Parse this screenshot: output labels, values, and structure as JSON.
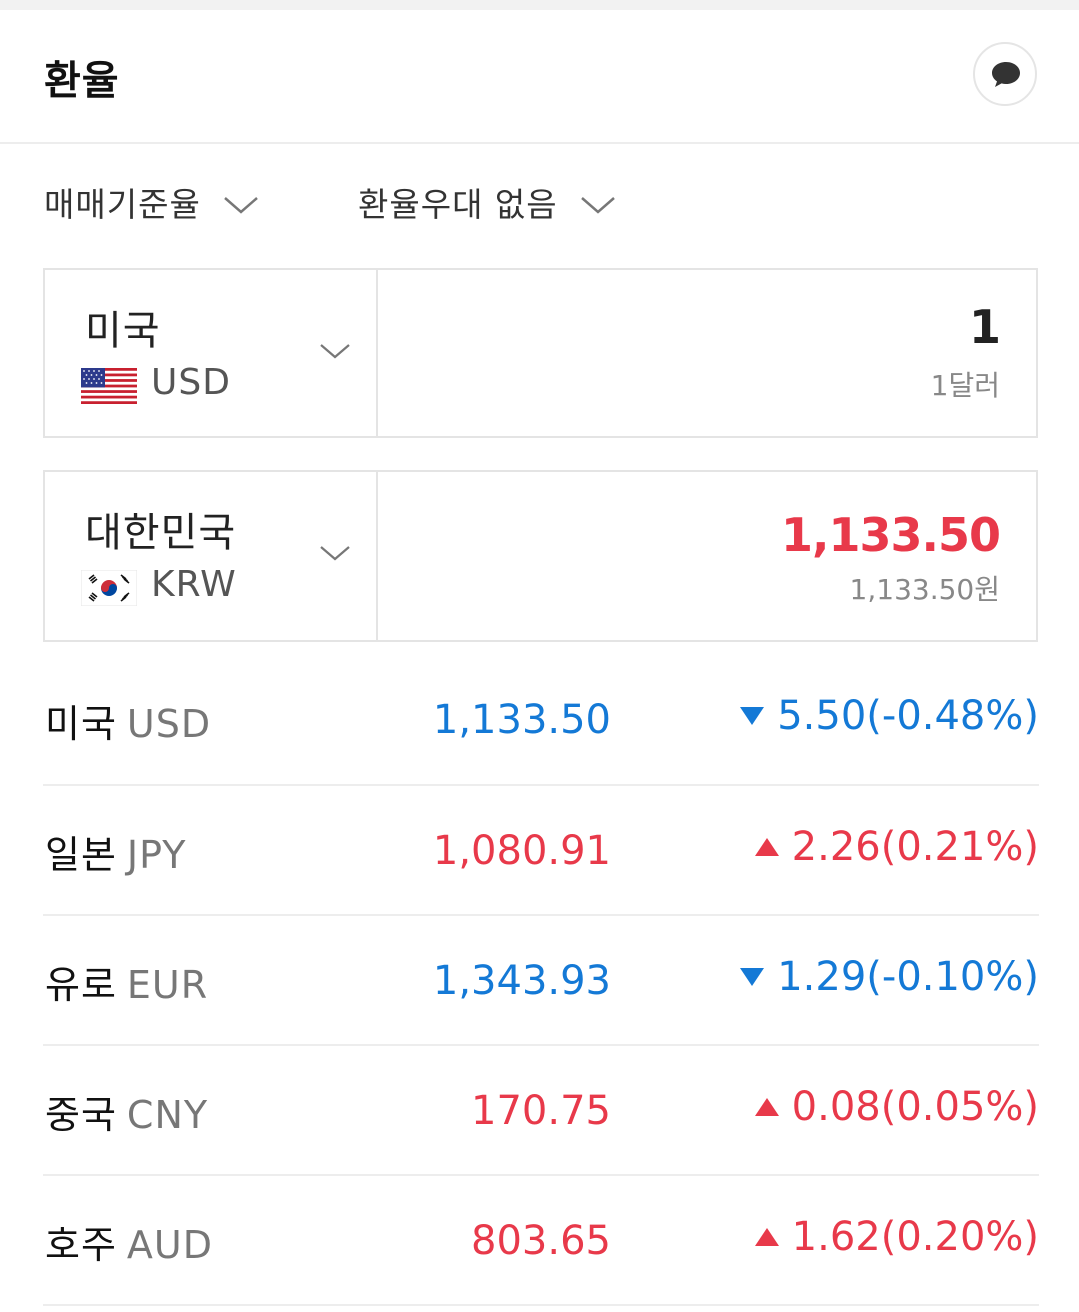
{
  "header": {
    "title": "환율"
  },
  "filters": {
    "basis": "매매기준율",
    "preference": "환율우대 없음"
  },
  "converter": {
    "from": {
      "country": "미국",
      "code": "USD",
      "amount": "1",
      "amount_text": "1달러"
    },
    "to": {
      "country": "대한민국",
      "code": "KRW",
      "amount": "1,133.50",
      "amount_text": "1,133.50원"
    }
  },
  "rates": [
    {
      "country": "미국",
      "code": "USD",
      "value": "1,133.50",
      "change": "5.50(-0.48%)",
      "direction": "down"
    },
    {
      "country": "일본",
      "code": "JPY",
      "value": "1,080.91",
      "change": "2.26(0.21%)",
      "direction": "up"
    },
    {
      "country": "유로",
      "code": "EUR",
      "value": "1,343.93",
      "change": "1.29(-0.10%)",
      "direction": "down"
    },
    {
      "country": "중국",
      "code": "CNY",
      "value": "170.75",
      "change": "0.08(0.05%)",
      "direction": "up"
    },
    {
      "country": "호주",
      "code": "AUD",
      "value": "803.65",
      "change": "1.62(0.20%)",
      "direction": "up"
    }
  ],
  "colors": {
    "up": "#e8394a",
    "down": "#1479d6",
    "border": "#e4e4e4"
  },
  "icons": [
    "chat-bubble-icon",
    "chevron-down-icon",
    "triangle-down-icon",
    "triangle-up-icon",
    "us-flag-icon",
    "kr-flag-icon"
  ]
}
